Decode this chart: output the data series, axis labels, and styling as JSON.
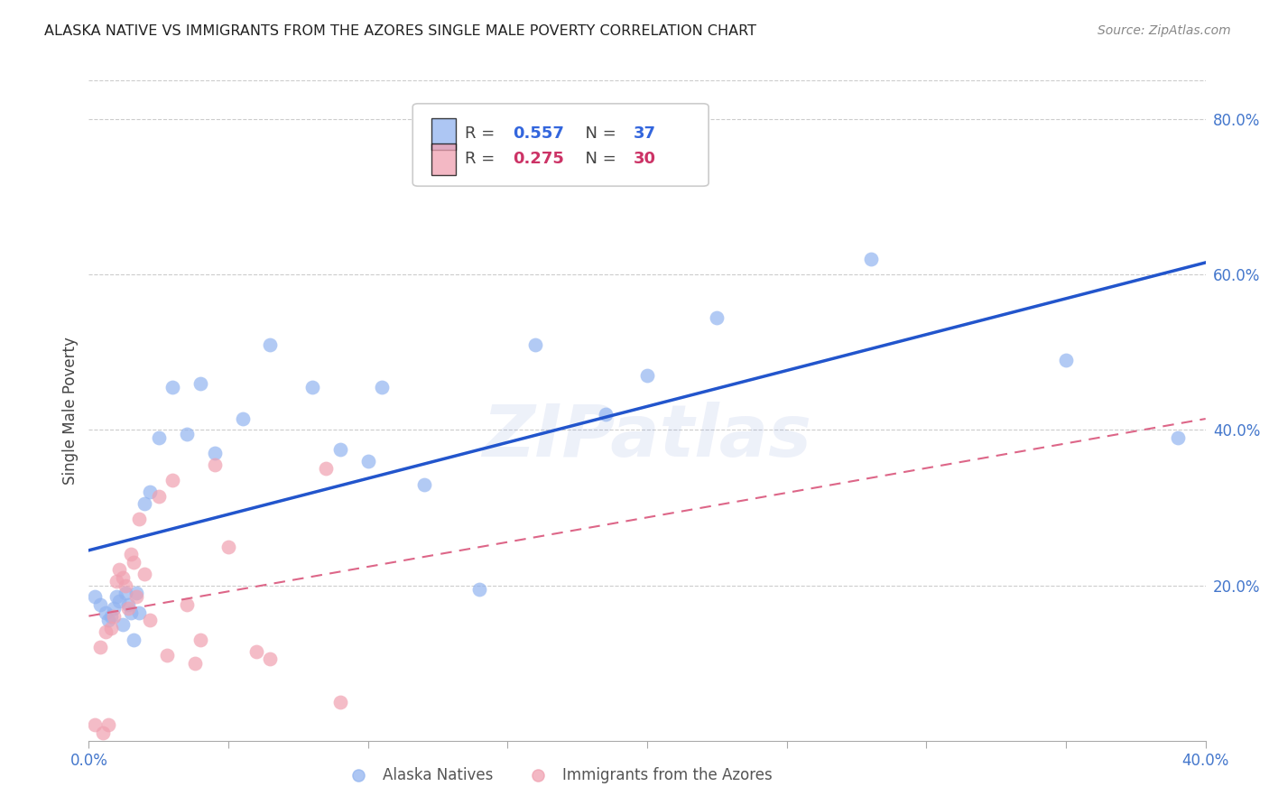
{
  "title": "ALASKA NATIVE VS IMMIGRANTS FROM THE AZORES SINGLE MALE POVERTY CORRELATION CHART",
  "source": "Source: ZipAtlas.com",
  "ylabel": "Single Male Poverty",
  "xlim": [
    0.0,
    0.4
  ],
  "ylim": [
    0.0,
    0.85
  ],
  "alaska_R": 0.557,
  "alaska_N": 37,
  "azores_R": 0.275,
  "azores_N": 30,
  "alaska_color": "#92b4f0",
  "azores_color": "#f0a0b0",
  "alaska_line_color": "#2255cc",
  "azores_line_color": "#dd6688",
  "watermark": "ZIPatlas",
  "alaska_x": [
    0.002,
    0.004,
    0.006,
    0.007,
    0.008,
    0.009,
    0.01,
    0.011,
    0.012,
    0.013,
    0.014,
    0.015,
    0.016,
    0.017,
    0.018,
    0.02,
    0.022,
    0.025,
    0.03,
    0.035,
    0.04,
    0.045,
    0.055,
    0.065,
    0.08,
    0.09,
    0.1,
    0.105,
    0.12,
    0.14,
    0.16,
    0.185,
    0.2,
    0.225,
    0.28,
    0.35,
    0.39
  ],
  "alaska_y": [
    0.185,
    0.175,
    0.165,
    0.155,
    0.16,
    0.17,
    0.185,
    0.18,
    0.15,
    0.19,
    0.175,
    0.165,
    0.13,
    0.19,
    0.165,
    0.305,
    0.32,
    0.39,
    0.455,
    0.395,
    0.46,
    0.37,
    0.415,
    0.51,
    0.455,
    0.375,
    0.36,
    0.455,
    0.33,
    0.195,
    0.51,
    0.42,
    0.47,
    0.545,
    0.62,
    0.49,
    0.39
  ],
  "azores_x": [
    0.002,
    0.004,
    0.005,
    0.006,
    0.007,
    0.008,
    0.009,
    0.01,
    0.011,
    0.012,
    0.013,
    0.014,
    0.015,
    0.016,
    0.017,
    0.018,
    0.02,
    0.022,
    0.025,
    0.028,
    0.03,
    0.035,
    0.038,
    0.04,
    0.045,
    0.05,
    0.06,
    0.065,
    0.085,
    0.09
  ],
  "azores_y": [
    0.02,
    0.12,
    0.01,
    0.14,
    0.02,
    0.145,
    0.16,
    0.205,
    0.22,
    0.21,
    0.2,
    0.17,
    0.24,
    0.23,
    0.185,
    0.285,
    0.215,
    0.155,
    0.315,
    0.11,
    0.335,
    0.175,
    0.1,
    0.13,
    0.355,
    0.25,
    0.115,
    0.105,
    0.35,
    0.05
  ]
}
